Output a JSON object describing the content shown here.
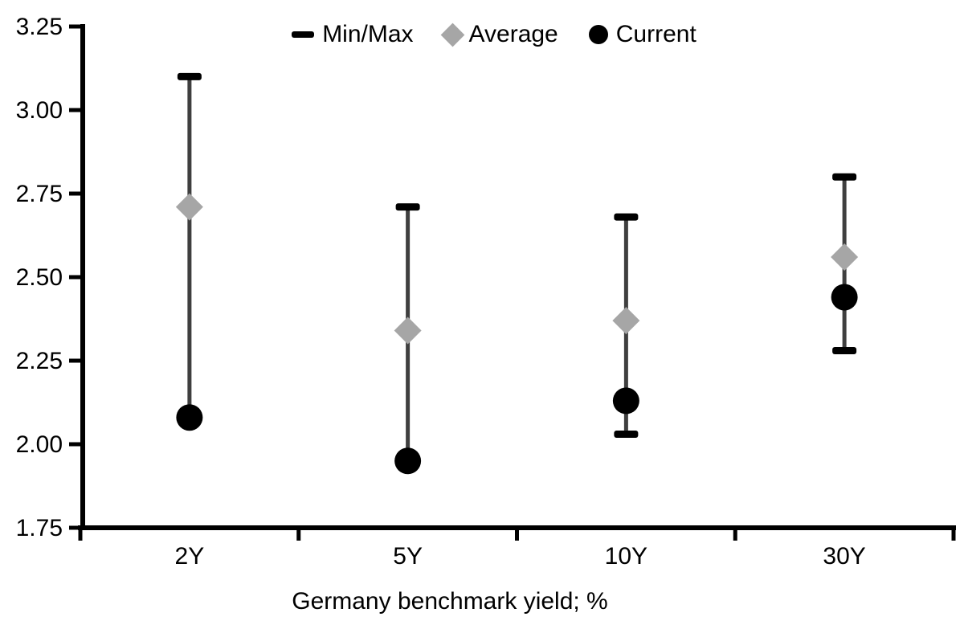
{
  "chart_data": {
    "type": "scatter",
    "subtype": "min-max-range-with-markers",
    "title": "",
    "xlabel": "Germany benchmark yield; %",
    "ylabel": "",
    "categories": [
      "2Y",
      "5Y",
      "10Y",
      "30Y"
    ],
    "ylim": [
      1.75,
      3.25
    ],
    "ytick_labels": [
      "3.25",
      "3.00",
      "2.75",
      "2.50",
      "2.25",
      "2.00",
      "1.75"
    ],
    "ytick_values": [
      3.25,
      3.0,
      2.75,
      2.5,
      2.25,
      2.0,
      1.75
    ],
    "grid": "off",
    "legend_position": "top-center",
    "series": [
      {
        "name": "Min/Max",
        "marker": "range-cap",
        "max": [
          3.1,
          2.71,
          2.68,
          2.8
        ],
        "min": [
          2.08,
          1.95,
          2.03,
          2.28
        ]
      },
      {
        "name": "Average",
        "marker": "diamond",
        "values": [
          2.71,
          2.34,
          2.37,
          2.56
        ]
      },
      {
        "name": "Current",
        "marker": "circle",
        "values": [
          2.08,
          1.95,
          2.13,
          2.44
        ]
      }
    ],
    "legend": [
      {
        "label": "Min/Max",
        "marker": "dash"
      },
      {
        "label": "Average",
        "marker": "diamond"
      },
      {
        "label": "Current",
        "marker": "circle"
      }
    ],
    "colors": {
      "background": "#ffffff",
      "axis": "#000000",
      "text": "#000000",
      "whisker_line": "#3f3f3f",
      "cap": "#000000",
      "average": "#a6a6a6",
      "current": "#000000"
    }
  }
}
